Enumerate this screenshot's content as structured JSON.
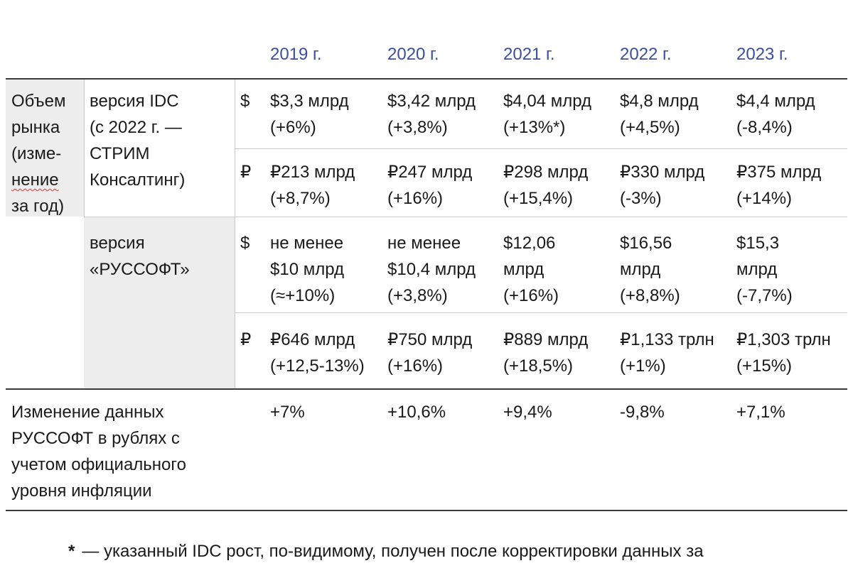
{
  "title": "",
  "years": [
    "2019 г.",
    "2020 г.",
    "2021 г.",
    "2022 г.",
    "2023 г."
  ],
  "group_label": [
    "Объем",
    "рынка",
    "(изме-",
    "нение",
    "за год)"
  ],
  "idc": {
    "label": [
      "версия IDC",
      "(с 2022 г. —",
      "СТРИМ",
      "Консалтинг)"
    ],
    "usd": {
      "symbol": "$",
      "cells": [
        [
          "$3,3 млрд",
          "(+6%)"
        ],
        [
          "$3,42 млрд",
          "(+3,8%)"
        ],
        [
          "$4,04 млрд",
          "(+13%*)"
        ],
        [
          "$4,8 млрд",
          "(+4,5%)"
        ],
        [
          "$4,4 млрд",
          "(-8,4%)"
        ]
      ]
    },
    "rub": {
      "symbol": "₽",
      "cells": [
        [
          "₽213 млрд",
          "(+8,7%)"
        ],
        [
          "₽247 млрд",
          "(+16%)"
        ],
        [
          "₽298 млрд",
          "(+15,4%)"
        ],
        [
          "₽330 млрд",
          "(-3%)"
        ],
        [
          "₽375 млрд",
          "(+14%)"
        ]
      ]
    }
  },
  "russoft": {
    "label": [
      "версия",
      "«РУССОФТ»"
    ],
    "usd": {
      "symbol": "$",
      "cells": [
        [
          "не менее",
          "$10 млрд",
          "(≈+10%)"
        ],
        [
          "не менее",
          "$10,4 млрд",
          "(+3,8%)"
        ],
        [
          "$12,06",
          "млрд",
          "(+16%)"
        ],
        [
          "$16,56",
          "млрд",
          "(+8,8%)"
        ],
        [
          "$15,3",
          "млрд",
          "(-7,7%)"
        ]
      ]
    },
    "rub": {
      "symbol": "₽",
      "cells": [
        [
          "₽646 млрд",
          "(+12,5-13%)"
        ],
        [
          "₽750 млрд",
          "(+16%)"
        ],
        [
          "₽889 млрд",
          "(+18,5%)"
        ],
        [
          "₽1,133 трлн",
          "(+1%)"
        ],
        [
          "₽1,303 трлн",
          "(+15%)"
        ]
      ]
    }
  },
  "inflation_row": {
    "label": [
      "Изменение данных",
      "РУССОФТ в рублях с",
      "учетом официального",
      "уровня инфляции"
    ],
    "values": [
      "+7%",
      "+10,6%",
      "+9,4%",
      "-9,8%",
      "+7,1%"
    ]
  },
  "footnote": {
    "star": "*",
    "text": "— указанный IDC рост, по-видимому, получен после корректировки данных за"
  }
}
